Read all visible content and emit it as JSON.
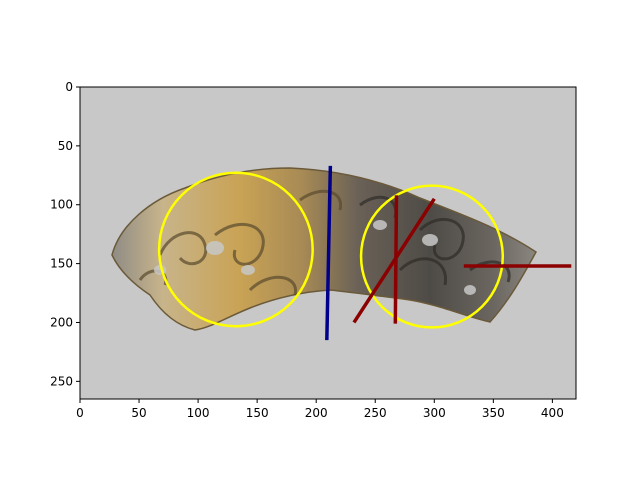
{
  "image": {
    "description_icon": "carved-jade-dragon-pendant",
    "background_color": "#c8c8c8"
  },
  "axes": {
    "xlim": [
      0,
      420
    ],
    "ylim": [
      265,
      0
    ],
    "x_ticks": [
      {
        "value": 0,
        "label": "0"
      },
      {
        "value": 50,
        "label": "50"
      },
      {
        "value": 100,
        "label": "100"
      },
      {
        "value": 150,
        "label": "150"
      },
      {
        "value": 200,
        "label": "200"
      },
      {
        "value": 250,
        "label": "250"
      },
      {
        "value": 300,
        "label": "300"
      },
      {
        "value": 350,
        "label": "350"
      },
      {
        "value": 400,
        "label": "400"
      }
    ],
    "y_ticks": [
      {
        "value": 0,
        "label": "0"
      },
      {
        "value": 50,
        "label": "50"
      },
      {
        "value": 100,
        "label": "100"
      },
      {
        "value": 150,
        "label": "150"
      },
      {
        "value": 200,
        "label": "200"
      },
      {
        "value": 250,
        "label": "250"
      }
    ]
  },
  "overlays": {
    "circles": [
      {
        "name": "left-circle",
        "cx": 132,
        "cy": 138,
        "r": 65,
        "color": "#ffff00"
      },
      {
        "name": "right-circle",
        "cx": 298,
        "cy": 144,
        "r": 60,
        "color": "#ffff00"
      }
    ],
    "lines": [
      {
        "name": "blue-axis-line",
        "x1": 212,
        "y1": 67,
        "x2": 209,
        "y2": 215,
        "color": "#00008b"
      },
      {
        "name": "red-vertical-line",
        "x1": 268,
        "y1": 92,
        "x2": 267,
        "y2": 201,
        "color": "#8b0000"
      },
      {
        "name": "red-diagonal-line",
        "x1": 300,
        "y1": 95,
        "x2": 232,
        "y2": 200,
        "color": "#8b0000"
      },
      {
        "name": "red-horizontal-line",
        "x1": 325,
        "y1": 152,
        "x2": 416,
        "y2": 152,
        "color": "#8b0000"
      }
    ]
  }
}
